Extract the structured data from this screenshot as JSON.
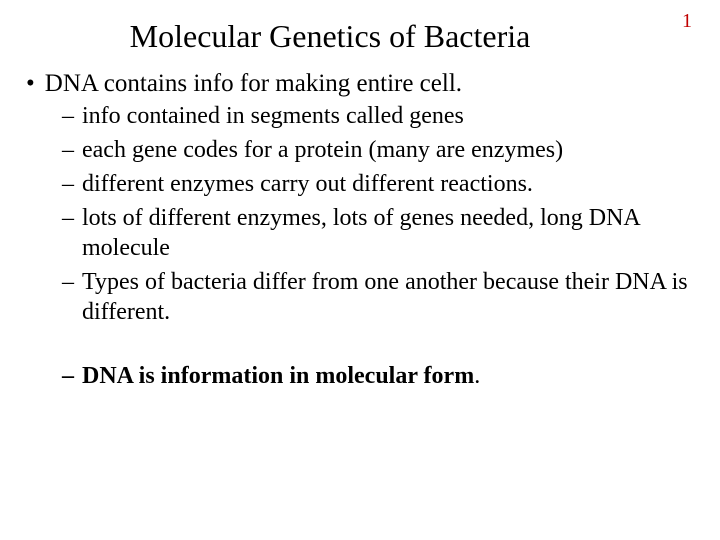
{
  "pageNumber": "1",
  "title": "Molecular Genetics of Bacteria",
  "colors": {
    "pageNumber": "#c00000",
    "text": "#000000",
    "background": "#ffffff"
  },
  "typography": {
    "family": "Times New Roman",
    "title_fontsize": 32,
    "l1_fontsize": 25,
    "l2_fontsize": 24
  },
  "bullets": {
    "l1": {
      "marker": "•",
      "text": "DNA contains info for making entire cell."
    },
    "l2": [
      {
        "marker": "–",
        "text": "info contained in segments called genes",
        "bold": false
      },
      {
        "marker": "–",
        "text": "each gene codes for a protein (many are enzymes)",
        "bold": false
      },
      {
        "marker": "–",
        "text": "different enzymes carry out different reactions.",
        "bold": false
      },
      {
        "marker": "–",
        "text": "lots of different enzymes, lots of genes needed, long DNA molecule",
        "bold": false
      },
      {
        "marker": "–",
        "text": "Types of bacteria differ from one another because their DNA is different.",
        "bold": false
      },
      {
        "marker": "–",
        "text": "DNA is information in molecular form",
        "bold": true,
        "trailingPeriodNormal": true
      }
    ]
  }
}
